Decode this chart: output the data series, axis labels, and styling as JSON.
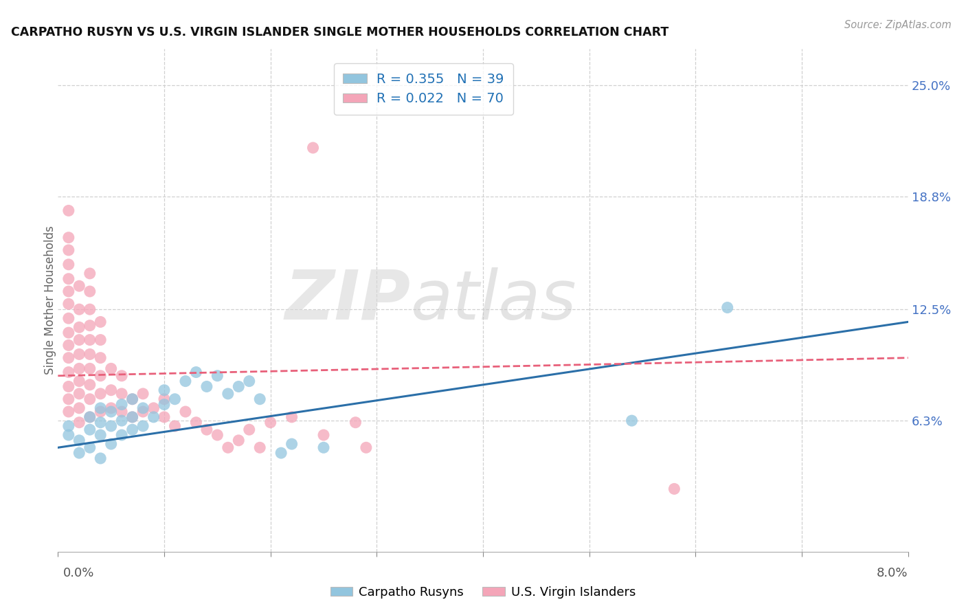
{
  "title": "CARPATHO RUSYN VS U.S. VIRGIN ISLANDER SINGLE MOTHER HOUSEHOLDS CORRELATION CHART",
  "source": "Source: ZipAtlas.com",
  "ylabel": "Single Mother Households",
  "ytick_labels": [
    "6.3%",
    "12.5%",
    "18.8%",
    "25.0%"
  ],
  "ytick_values": [
    0.063,
    0.125,
    0.188,
    0.25
  ],
  "xmin": 0.0,
  "xmax": 0.08,
  "ymin": -0.01,
  "ymax": 0.27,
  "blue_color": "#92c5de",
  "pink_color": "#f4a5b8",
  "line_blue_color": "#2b6fa8",
  "line_pink_color": "#e8607a",
  "watermark_zip": "ZIP",
  "watermark_atlas": "atlas",
  "blue_points": [
    [
      0.001,
      0.06
    ],
    [
      0.001,
      0.055
    ],
    [
      0.002,
      0.045
    ],
    [
      0.002,
      0.052
    ],
    [
      0.003,
      0.048
    ],
    [
      0.003,
      0.058
    ],
    [
      0.003,
      0.065
    ],
    [
      0.004,
      0.042
    ],
    [
      0.004,
      0.055
    ],
    [
      0.004,
      0.062
    ],
    [
      0.004,
      0.07
    ],
    [
      0.005,
      0.05
    ],
    [
      0.005,
      0.06
    ],
    [
      0.005,
      0.068
    ],
    [
      0.006,
      0.055
    ],
    [
      0.006,
      0.063
    ],
    [
      0.006,
      0.072
    ],
    [
      0.007,
      0.058
    ],
    [
      0.007,
      0.065
    ],
    [
      0.007,
      0.075
    ],
    [
      0.008,
      0.06
    ],
    [
      0.008,
      0.07
    ],
    [
      0.009,
      0.065
    ],
    [
      0.01,
      0.072
    ],
    [
      0.01,
      0.08
    ],
    [
      0.011,
      0.075
    ],
    [
      0.012,
      0.085
    ],
    [
      0.013,
      0.09
    ],
    [
      0.014,
      0.082
    ],
    [
      0.015,
      0.088
    ],
    [
      0.016,
      0.078
    ],
    [
      0.017,
      0.082
    ],
    [
      0.018,
      0.085
    ],
    [
      0.019,
      0.075
    ],
    [
      0.021,
      0.045
    ],
    [
      0.022,
      0.05
    ],
    [
      0.025,
      0.048
    ],
    [
      0.054,
      0.063
    ],
    [
      0.063,
      0.126
    ]
  ],
  "pink_points": [
    [
      0.001,
      0.068
    ],
    [
      0.001,
      0.075
    ],
    [
      0.001,
      0.082
    ],
    [
      0.001,
      0.09
    ],
    [
      0.001,
      0.098
    ],
    [
      0.001,
      0.105
    ],
    [
      0.001,
      0.112
    ],
    [
      0.001,
      0.12
    ],
    [
      0.001,
      0.128
    ],
    [
      0.001,
      0.135
    ],
    [
      0.001,
      0.142
    ],
    [
      0.001,
      0.15
    ],
    [
      0.001,
      0.158
    ],
    [
      0.001,
      0.165
    ],
    [
      0.002,
      0.062
    ],
    [
      0.002,
      0.07
    ],
    [
      0.002,
      0.078
    ],
    [
      0.002,
      0.085
    ],
    [
      0.002,
      0.092
    ],
    [
      0.002,
      0.1
    ],
    [
      0.002,
      0.108
    ],
    [
      0.002,
      0.115
    ],
    [
      0.002,
      0.125
    ],
    [
      0.002,
      0.138
    ],
    [
      0.003,
      0.065
    ],
    [
      0.003,
      0.075
    ],
    [
      0.003,
      0.083
    ],
    [
      0.003,
      0.092
    ],
    [
      0.003,
      0.1
    ],
    [
      0.003,
      0.108
    ],
    [
      0.003,
      0.116
    ],
    [
      0.003,
      0.125
    ],
    [
      0.003,
      0.135
    ],
    [
      0.003,
      0.145
    ],
    [
      0.004,
      0.068
    ],
    [
      0.004,
      0.078
    ],
    [
      0.004,
      0.088
    ],
    [
      0.004,
      0.098
    ],
    [
      0.004,
      0.108
    ],
    [
      0.004,
      0.118
    ],
    [
      0.005,
      0.07
    ],
    [
      0.005,
      0.08
    ],
    [
      0.005,
      0.092
    ],
    [
      0.006,
      0.068
    ],
    [
      0.006,
      0.078
    ],
    [
      0.006,
      0.088
    ],
    [
      0.007,
      0.065
    ],
    [
      0.007,
      0.075
    ],
    [
      0.008,
      0.068
    ],
    [
      0.008,
      0.078
    ],
    [
      0.009,
      0.07
    ],
    [
      0.01,
      0.065
    ],
    [
      0.01,
      0.075
    ],
    [
      0.011,
      0.06
    ],
    [
      0.012,
      0.068
    ],
    [
      0.013,
      0.062
    ],
    [
      0.014,
      0.058
    ],
    [
      0.015,
      0.055
    ],
    [
      0.016,
      0.048
    ],
    [
      0.017,
      0.052
    ],
    [
      0.018,
      0.058
    ],
    [
      0.019,
      0.048
    ],
    [
      0.02,
      0.062
    ],
    [
      0.022,
      0.065
    ],
    [
      0.024,
      0.215
    ],
    [
      0.025,
      0.055
    ],
    [
      0.028,
      0.062
    ],
    [
      0.029,
      0.048
    ],
    [
      0.058,
      0.025
    ],
    [
      0.001,
      0.18
    ]
  ],
  "blue_line": [
    0.0,
    0.08
  ],
  "blue_line_y": [
    0.048,
    0.118
  ],
  "pink_line": [
    0.0,
    0.08
  ],
  "pink_line_y": [
    0.088,
    0.098
  ]
}
